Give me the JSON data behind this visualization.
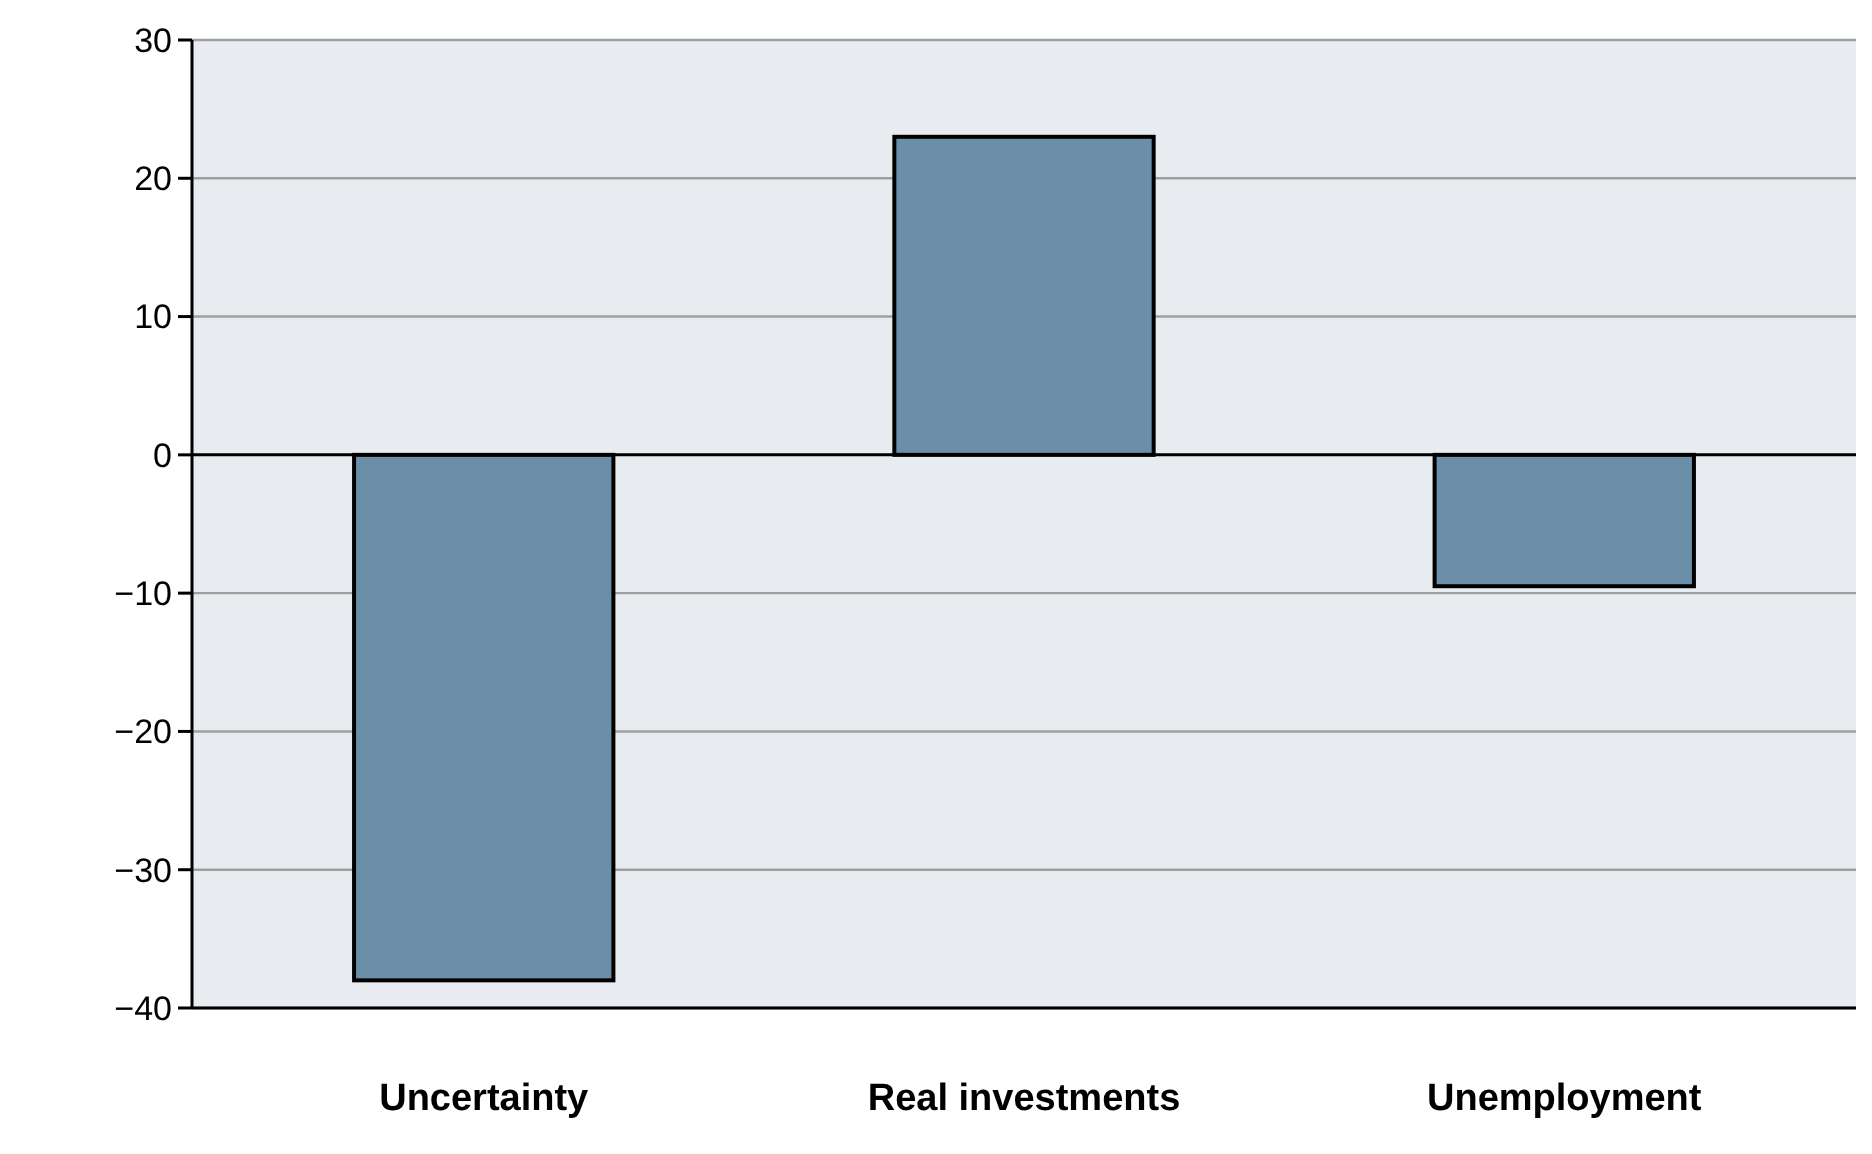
{
  "chart_data": {
    "type": "bar",
    "categories": [
      "Uncertainty",
      "Real investments",
      "Unemployment"
    ],
    "values": [
      -38,
      23,
      -9.5
    ],
    "color": "#6b8fa8",
    "ylim": [
      -40,
      30
    ],
    "yticks": [
      -40,
      -30,
      -20,
      -10,
      0,
      10,
      20,
      30
    ],
    "grid": "y"
  }
}
